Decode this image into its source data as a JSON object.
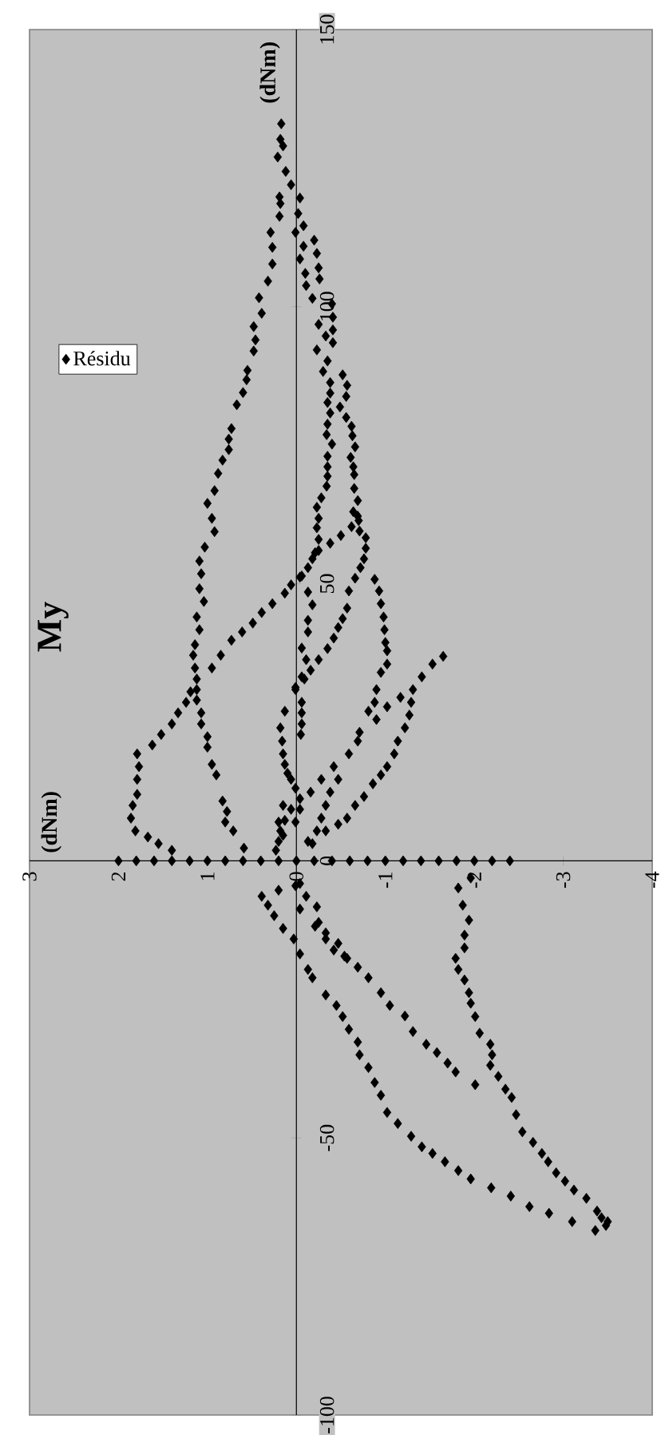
{
  "chart_data": {
    "type": "scatter",
    "title": "My",
    "ylabel": "(dNm)",
    "annotations": [
      "(dNm)"
    ],
    "xlim": [
      3,
      -4
    ],
    "ylim": [
      -100,
      150
    ],
    "xticks": [
      3,
      2,
      1,
      0,
      -1,
      -2,
      -3,
      -4
    ],
    "yticks": [
      -100,
      -50,
      0,
      50,
      100,
      150
    ],
    "legend": "top left",
    "marker": "diamond",
    "series": [
      {
        "name": "Résidu",
        "color": "#000000",
        "values": [
          0,
          0,
          0,
          0,
          0,
          0,
          0,
          0,
          0,
          0,
          0,
          0,
          0,
          0,
          0,
          0,
          0,
          0,
          0,
          0,
          0,
          0,
          0,
          2.3,
          5.4,
          7,
          8.9,
          10.8,
          15.5,
          17.4,
          20.5,
          22.4,
          24.7,
          26.7,
          29,
          30.9,
          32.8,
          34.8,
          37.1,
          39,
          41.7,
          44,
          46.8,
          49.1,
          51.8,
          54.1,
          56.6,
          59.4,
          61.8,
          64.5,
          66.8,
          69.9,
          72.3,
          74.2,
          76.1,
          78,
          82.3,
          84.5,
          86.8,
          88.5,
          92,
          94,
          96.4,
          98.8,
          101.6,
          104.6,
          107.7,
          110.7,
          113.4,
          116.3,
          118.6,
          119.8,
          122,
          124.4,
          127,
          129,
          130.2,
          133,
          119.6,
          116.8,
          114.6,
          113.4,
          110.9,
          108.6,
          106,
          103.8,
          101.5,
          96.8,
          94.7,
          92.2,
          90.2,
          88.3,
          86.3,
          84.4,
          82.7,
          80.8,
          78.8,
          76.9,
          75.2,
          73,
          71.1,
          69.4,
          112,
          109.6,
          107,
          105,
          100.5,
          98.1,
          95.8,
          93.5,
          87.7,
          85.8,
          83.8,
          81.9,
          80,
          78.4,
          76.7,
          74.7,
          72.8,
          71.1,
          69.7,
          67.6,
          65.5,
          63.8,
          61.8,
          60.1,
          58,
          55.6,
          54.5,
          51.4,
          48.5,
          46.2,
          43.4,
          41.3,
          38.4,
          36.3,
          33.2,
          30.9,
          28.6,
          26.7,
          24.7,
          22.8,
          67.2,
          65,
          63,
          61.4,
          59.5,
          58.3,
          56.4,
          54.5,
          52.9,
          51,
          48.7,
          45.6,
          43.7,
          42.1,
          40.2,
          38.3,
          36.3,
          34.4,
          32.8,
          31.3,
          27,
          24,
          21.6,
          19.3,
          17.4,
          15.8,
          14.7,
          13.1,
          11.2,
          9.3,
          7.3,
          5.4,
          3.5,
          1.9,
          3.5,
          5.4,
          7.7,
          10,
          12.4,
          14.7,
          19.3,
          23.2,
          27,
          28.6,
          30.9,
          34,
          35.5,
          37.9,
          39.4,
          41.7,
          44,
          46.4,
          48.7,
          50.8,
          36.9,
          35.5,
          33.2,
          30.9,
          28.6,
          26.3,
          24,
          21.6,
          19.3,
          17,
          15.5,
          13.9,
          11.6,
          10,
          7.7,
          6.6,
          5.4,
          3.1,
          29.5,
          27.8,
          25.5,
          21.6,
          17,
          14.7,
          12.4,
          9.3,
          7,
          1.9,
          3.1,
          4.3,
          5.4,
          7.7,
          10,
          12,
          14.7,
          17,
          19.3,
          20.9,
          22.8,
          24.7,
          26.7,
          28.6,
          30.5,
          34.8,
          37.1,
          39.8,
          41.3,
          42.9,
          44.8,
          46.4,
          48.3,
          49.8,
          51.2,
          52.9,
          56,
          57.3,
          58.7,
          60.3,
          62.2,
          4.6,
          7,
          10,
          -3.1,
          -6.4,
          -8,
          -9.9,
          -12.2,
          -14.1,
          -16.8,
          -19.6,
          -21.1,
          -24.2,
          -26.1,
          -28.1,
          -30.4,
          -32.7,
          -35,
          -37.3,
          -40,
          -42.3,
          -45.4,
          -47.4,
          -49.7,
          -51.6,
          -52.8,
          -54.3,
          -55.9,
          -57.4,
          -59,
          -60.5,
          -62.4,
          -63.6,
          -65.1,
          -66.7,
          -65.8,
          -4.9,
          -8,
          -10.7,
          -13.4,
          -15.7,
          -17.6,
          -19.6,
          -21.5,
          -23.8,
          -25.7,
          -28.1,
          -31.1,
          -33.1,
          -35,
          -36.9,
          -38.9,
          -41.2,
          -42.7,
          -45.8,
          -48.9,
          -50.8,
          -52.8,
          -54.3,
          -56.3,
          -57.8,
          -59.4,
          -60.9,
          -63.2,
          -64.4,
          -65.1,
          -4.1,
          -6.4,
          -8.3,
          -11.1,
          -13,
          -14.9,
          -17.2,
          -19.2,
          -21.1,
          -23.8,
          -26.1,
          -28,
          -30.8,
          -33.1,
          -34.6,
          -36.5,
          -38.1,
          -40.4,
          -11.8,
          -14.1,
          -16.1,
          -17.6,
          -5.3,
          -4.5,
          -8.7
        ],
        "x": [
          2,
          1.8,
          1.6,
          1.4,
          1.2,
          1,
          0.8,
          0.6,
          0.4,
          0.2,
          0,
          -0.2,
          -0.4,
          -0.6,
          -0.8,
          -1,
          -1.2,
          -1.4,
          -1.6,
          -1.8,
          -2,
          -2.2,
          -2.4,
          0.59,
          0.71,
          0.8,
          0.78,
          0.83,
          0.9,
          0.95,
          1,
          1,
          1.07,
          1.07,
          1.12,
          1.12,
          1.12,
          1.14,
          1.16,
          1.14,
          1.09,
          1.12,
          1.04,
          1.09,
          1.07,
          1.09,
          1.03,
          0.92,
          0.95,
          1,
          0.92,
          0.88,
          0.83,
          0.76,
          0.76,
          0.73,
          0.67,
          0.6,
          0.56,
          0.55,
          0.48,
          0.46,
          0.48,
          0.39,
          0.42,
          0.32,
          0.27,
          0.27,
          0.29,
          0.19,
          0.18,
          0.19,
          0.06,
          0.12,
          0.21,
          0.15,
          0.18,
          0.17,
          -0.04,
          -0.02,
          -0.08,
          0.01,
          -0.08,
          -0.04,
          -0.1,
          -0.11,
          -0.18,
          -0.25,
          -0.33,
          -0.23,
          -0.35,
          -0.3,
          -0.38,
          -0.38,
          -0.35,
          -0.38,
          -0.35,
          -0.34,
          -0.4,
          -0.35,
          -0.35,
          -0.35,
          -0.2,
          -0.23,
          -0.25,
          -0.26,
          -0.4,
          -0.41,
          -0.41,
          -0.41,
          -0.52,
          -0.57,
          -0.56,
          -0.49,
          -0.56,
          -0.62,
          -0.63,
          -0.66,
          -0.61,
          -0.64,
          -0.65,
          -0.34,
          -0.28,
          -0.23,
          -0.25,
          -0.23,
          -0.25,
          -0.21,
          -0.18,
          -0.06,
          -0.13,
          -0.18,
          -0.13,
          -0.13,
          -0.06,
          -0.11,
          -0.06,
          0.01,
          -0.06,
          -0.06,
          -0.06,
          -0.05,
          -0.65,
          -0.69,
          -0.64,
          -0.7,
          -0.71,
          -0.78,
          -0.78,
          -0.76,
          -0.72,
          -0.66,
          -0.59,
          -0.57,
          -0.52,
          -0.47,
          -0.42,
          -0.35,
          -0.25,
          -0.16,
          -0.09,
          0.01,
          0.13,
          0.18,
          0.16,
          0.15,
          0.13,
          0.1,
          0.06,
          0.01,
          -0.04,
          0.06,
          0.13,
          0.18,
          0.2,
          0.23,
          -0.13,
          -0.23,
          -0.28,
          -0.33,
          -0.38,
          -0.47,
          -0.59,
          -0.71,
          -0.81,
          -0.88,
          -0.9,
          -0.95,
          -1.02,
          -1.02,
          -1,
          -0.99,
          -0.98,
          -0.95,
          -0.93,
          -0.88,
          -1.65,
          -1.53,
          -1.41,
          -1.31,
          -1.29,
          -1.27,
          -1.22,
          -1.14,
          -1.1,
          -1.02,
          -0.95,
          -0.86,
          -0.76,
          -0.66,
          -0.57,
          -0.47,
          -0.33,
          -0.18,
          -1.17,
          -1.02,
          -0.9,
          -0.69,
          -0.42,
          -0.28,
          -0.16,
          -0.04,
          0.01,
          1.4,
          1.55,
          1.67,
          1.81,
          1.86,
          1.84,
          1.79,
          1.79,
          1.77,
          1.79,
          1.62,
          1.52,
          1.4,
          1.33,
          1.24,
          1.19,
          0.95,
          0.85,
          0.73,
          0.61,
          0.49,
          0.39,
          0.27,
          0.13,
          0.06,
          -0.04,
          -0.13,
          -0.25,
          -0.38,
          -0.5,
          -0.62,
          -0.69,
          0.15,
          0.2,
          0.15,
          -1.96,
          0.39,
          0.32,
          0.25,
          0.15,
          0.03,
          -0.04,
          -0.13,
          -0.18,
          -0.33,
          -0.45,
          -0.52,
          -0.59,
          -0.69,
          -0.71,
          -0.81,
          -0.88,
          -0.95,
          -1.02,
          -1.14,
          -1.29,
          -1.41,
          -1.53,
          -1.67,
          -1.82,
          -1.96,
          -2.19,
          -2.41,
          -2.62,
          -2.84,
          -3.1,
          -3.36,
          -3.48,
          -1.82,
          -1.87,
          -1.94,
          -1.89,
          -1.89,
          -1.79,
          -1.82,
          -1.89,
          -1.94,
          -1.96,
          -2.01,
          -2.06,
          -2.18,
          -2.2,
          -2.18,
          -2.27,
          -2.35,
          -2.42,
          -2.47,
          -2.54,
          -2.66,
          -2.76,
          -2.83,
          -2.92,
          -3.02,
          -3.12,
          -3.26,
          -3.38,
          -3.43,
          -3.5,
          -0.04,
          -0.11,
          -0.23,
          -0.25,
          -0.33,
          -0.47,
          -0.54,
          -0.69,
          -0.81,
          -0.95,
          -1.05,
          -1.22,
          -1.31,
          -1.46,
          -1.58,
          -1.7,
          -1.79,
          -2.01,
          -0.21,
          -0.33,
          -0.42,
          -0.57,
          0.2,
          0.01,
          -0.04
        ]
      }
    ]
  }
}
